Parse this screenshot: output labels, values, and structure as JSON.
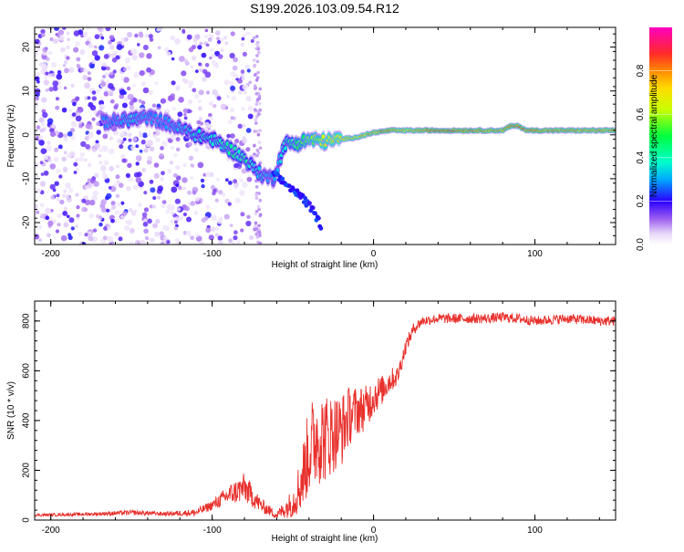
{
  "title": "S199.2026.103.09.54.R12",
  "chart_data": [
    {
      "type": "heatmap",
      "xlabel": "Height of straight line (km)",
      "ylabel": "Frequency (Hz)",
      "xlim": [
        -210,
        150
      ],
      "ylim": [
        -25,
        24.5
      ],
      "xticks": [
        -200,
        -100,
        0,
        100
      ],
      "xtick_labels": [
        "-200",
        "-100",
        "0",
        "100"
      ],
      "yticks": [
        -20,
        -10,
        0,
        10,
        20
      ],
      "ytick_labels": [
        "-20",
        "-10",
        "0",
        "10",
        "20"
      ],
      "colorbar": {
        "label": "Normalized spectral amplitude",
        "range": [
          0,
          1
        ],
        "ticks": [
          0.0,
          0.2,
          0.4,
          0.6,
          0.8
        ],
        "tick_labels": [
          "0.0",
          "0.2",
          "0.4",
          "0.6",
          "0.8"
        ]
      },
      "ridge": {
        "x": [
          -165,
          -150,
          -140,
          -130,
          -120,
          -110,
          -100,
          -90,
          -80,
          -70,
          -62,
          -55,
          -48,
          -40,
          -30,
          -20,
          -10,
          0,
          10,
          20,
          40,
          60,
          80,
          85,
          90,
          95,
          100,
          120,
          150
        ],
        "y": [
          3,
          3.5,
          4,
          3,
          1.5,
          0,
          -1,
          -3,
          -5.5,
          -9,
          -10,
          -2,
          -2,
          -1,
          -1.5,
          -1,
          -0.5,
          0.5,
          1,
          1,
          1,
          1,
          1,
          2,
          2,
          1,
          1,
          1,
          1
        ],
        "amp": [
          0.3,
          0.35,
          0.3,
          0.3,
          0.35,
          0.4,
          0.4,
          0.45,
          0.45,
          0.35,
          0.3,
          0.4,
          0.5,
          0.6,
          0.7,
          0.75,
          0.8,
          0.85,
          0.9,
          0.8,
          0.95,
          0.9,
          0.85,
          0.9,
          0.9,
          0.9,
          0.9,
          0.85,
          0.85
        ]
      },
      "secondary_ridge": {
        "x": [
          -62,
          -55,
          -45,
          -38,
          -32
        ],
        "y": [
          -9,
          -11,
          -14,
          -17,
          -21
        ],
        "amp": [
          0.25,
          0.25,
          0.2,
          0.2,
          0.15
        ]
      }
    },
    {
      "type": "line",
      "xlabel": "Height of straight line (km)",
      "ylabel": "SNR (10 * v/v)",
      "xlim": [
        -210,
        150
      ],
      "ylim": [
        0,
        880
      ],
      "xticks": [
        -200,
        -100,
        0,
        100
      ],
      "xtick_labels": [
        "-200",
        "-100",
        "0",
        "100"
      ],
      "yticks": [
        0,
        200,
        400,
        600,
        800
      ],
      "ytick_labels": [
        "0",
        "200",
        "400",
        "600",
        "800"
      ],
      "series": [
        {
          "name": "SNR",
          "color": "#e8302c",
          "x": [
            -210,
            -190,
            -170,
            -150,
            -130,
            -110,
            -100,
            -90,
            -80,
            -70,
            -60,
            -50,
            -45,
            -40,
            -35,
            -30,
            -25,
            -20,
            -15,
            -10,
            -5,
            0,
            5,
            10,
            15,
            20,
            25,
            30,
            40,
            50,
            60,
            70,
            80,
            90,
            100,
            110,
            120,
            130,
            140,
            150
          ],
          "y": [
            20,
            22,
            25,
            30,
            25,
            30,
            60,
            100,
            130,
            60,
            20,
            70,
            150,
            280,
            340,
            330,
            350,
            360,
            420,
            440,
            450,
            500,
            520,
            560,
            580,
            700,
            770,
            800,
            810,
            810,
            810,
            810,
            815,
            810,
            800,
            805,
            810,
            805,
            800,
            800
          ],
          "noise": [
            6,
            6,
            8,
            10,
            8,
            15,
            20,
            40,
            60,
            30,
            15,
            60,
            120,
            180,
            200,
            180,
            160,
            150,
            120,
            100,
            90,
            80,
            60,
            50,
            40,
            30,
            25,
            20,
            20,
            20,
            20,
            20,
            20,
            20,
            20,
            20,
            20,
            20,
            20,
            20
          ]
        }
      ]
    }
  ]
}
